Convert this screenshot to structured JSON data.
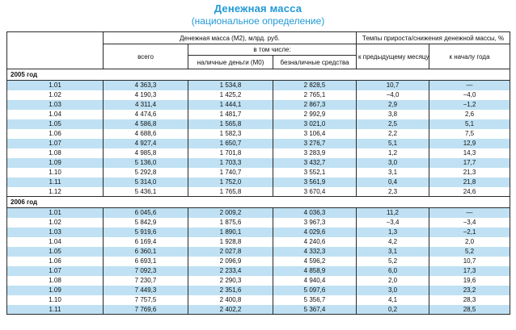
{
  "title": "Денежная масса",
  "subtitle": "(национальное определение)",
  "colors": {
    "title_blue": "#2299d6",
    "stripe_blue": "#bfe1f3",
    "border": "#2a2a2a"
  },
  "table": {
    "header": {
      "group_money": "Денежная масса (М2), млрд. руб.",
      "group_rates": "Темпы прироста/снижения денежной массы, %",
      "col_total": "всего",
      "col_including": "в том числе:",
      "col_cash": "наличные деньги (М0)",
      "col_noncash": "безналичные средства",
      "col_prev_month": "к предыдущему месяцу",
      "col_year_start": "к началу года"
    },
    "sections": [
      {
        "year_label": "2005 год",
        "rows": [
          [
            "1.01",
            "4 363,3",
            "1 534,8",
            "2 828,5",
            "10,7",
            "—"
          ],
          [
            "1.02",
            "4 190,3",
            "1 425,2",
            "2 765,1",
            "−4,0",
            "−4,0"
          ],
          [
            "1.03",
            "4 311,4",
            "1 444,1",
            "2 867,3",
            "2,9",
            "−1,2"
          ],
          [
            "1.04",
            "4 474,6",
            "1 481,7",
            "2 992,9",
            "3,8",
            "2,6"
          ],
          [
            "1.05",
            "4 586,8",
            "1 565,8",
            "3 021,0",
            "2,5",
            "5,1"
          ],
          [
            "1.06",
            "4 688,6",
            "1 582,3",
            "3 106,4",
            "2,2",
            "7,5"
          ],
          [
            "1.07",
            "4 927,4",
            "1 650,7",
            "3 276,7",
            "5,1",
            "12,9"
          ],
          [
            "1.08",
            "4 985,8",
            "1 701,8",
            "3 283,9",
            "1,2",
            "14,3"
          ],
          [
            "1.09",
            "5 136,0",
            "1 703,3",
            "3 432,7",
            "3,0",
            "17,7"
          ],
          [
            "1.10",
            "5 292,8",
            "1 740,7",
            "3 552,1",
            "3,1",
            "21,3"
          ],
          [
            "1.11",
            "5 314,0",
            "1 752,0",
            "3 561,9",
            "0,4",
            "21,8"
          ],
          [
            "1.12",
            "5 436,1",
            "1 765,8",
            "3 670,4",
            "2,3",
            "24,6"
          ]
        ]
      },
      {
        "year_label": "2006 год",
        "rows": [
          [
            "1.01",
            "6 045,6",
            "2 009,2",
            "4 036,3",
            "11,2",
            "—"
          ],
          [
            "1.02",
            "5 842,9",
            "1 875,6",
            "3 967,3",
            "−3,4",
            "−3,4"
          ],
          [
            "1.03",
            "5 919,6",
            "1 890,1",
            "4 029,6",
            "1,3",
            "−2,1"
          ],
          [
            "1.04",
            "6 169,4",
            "1 928,8",
            "4 240,6",
            "4,2",
            "2,0"
          ],
          [
            "1.05",
            "6 360,1",
            "2 027,8",
            "4 332,3",
            "3,1",
            "5,2"
          ],
          [
            "1.06",
            "6 693,1",
            "2 096,9",
            "4 596,2",
            "5,2",
            "10,7"
          ],
          [
            "1.07",
            "7 092,3",
            "2 233,4",
            "4 858,9",
            "6,0",
            "17,3"
          ],
          [
            "1.08",
            "7 230,7",
            "2 290,3",
            "4 940,4",
            "2,0",
            "19,6"
          ],
          [
            "1.09",
            "7 449,3",
            "2 351,6",
            "5 097,6",
            "3,0",
            "23,2"
          ],
          [
            "1.10",
            "7 757,5",
            "2 400,8",
            "5 356,7",
            "4,1",
            "28,3"
          ],
          [
            "1.11",
            "7 769,6",
            "2 402,2",
            "5 367,4",
            "0,2",
            "28,5"
          ]
        ]
      }
    ]
  }
}
